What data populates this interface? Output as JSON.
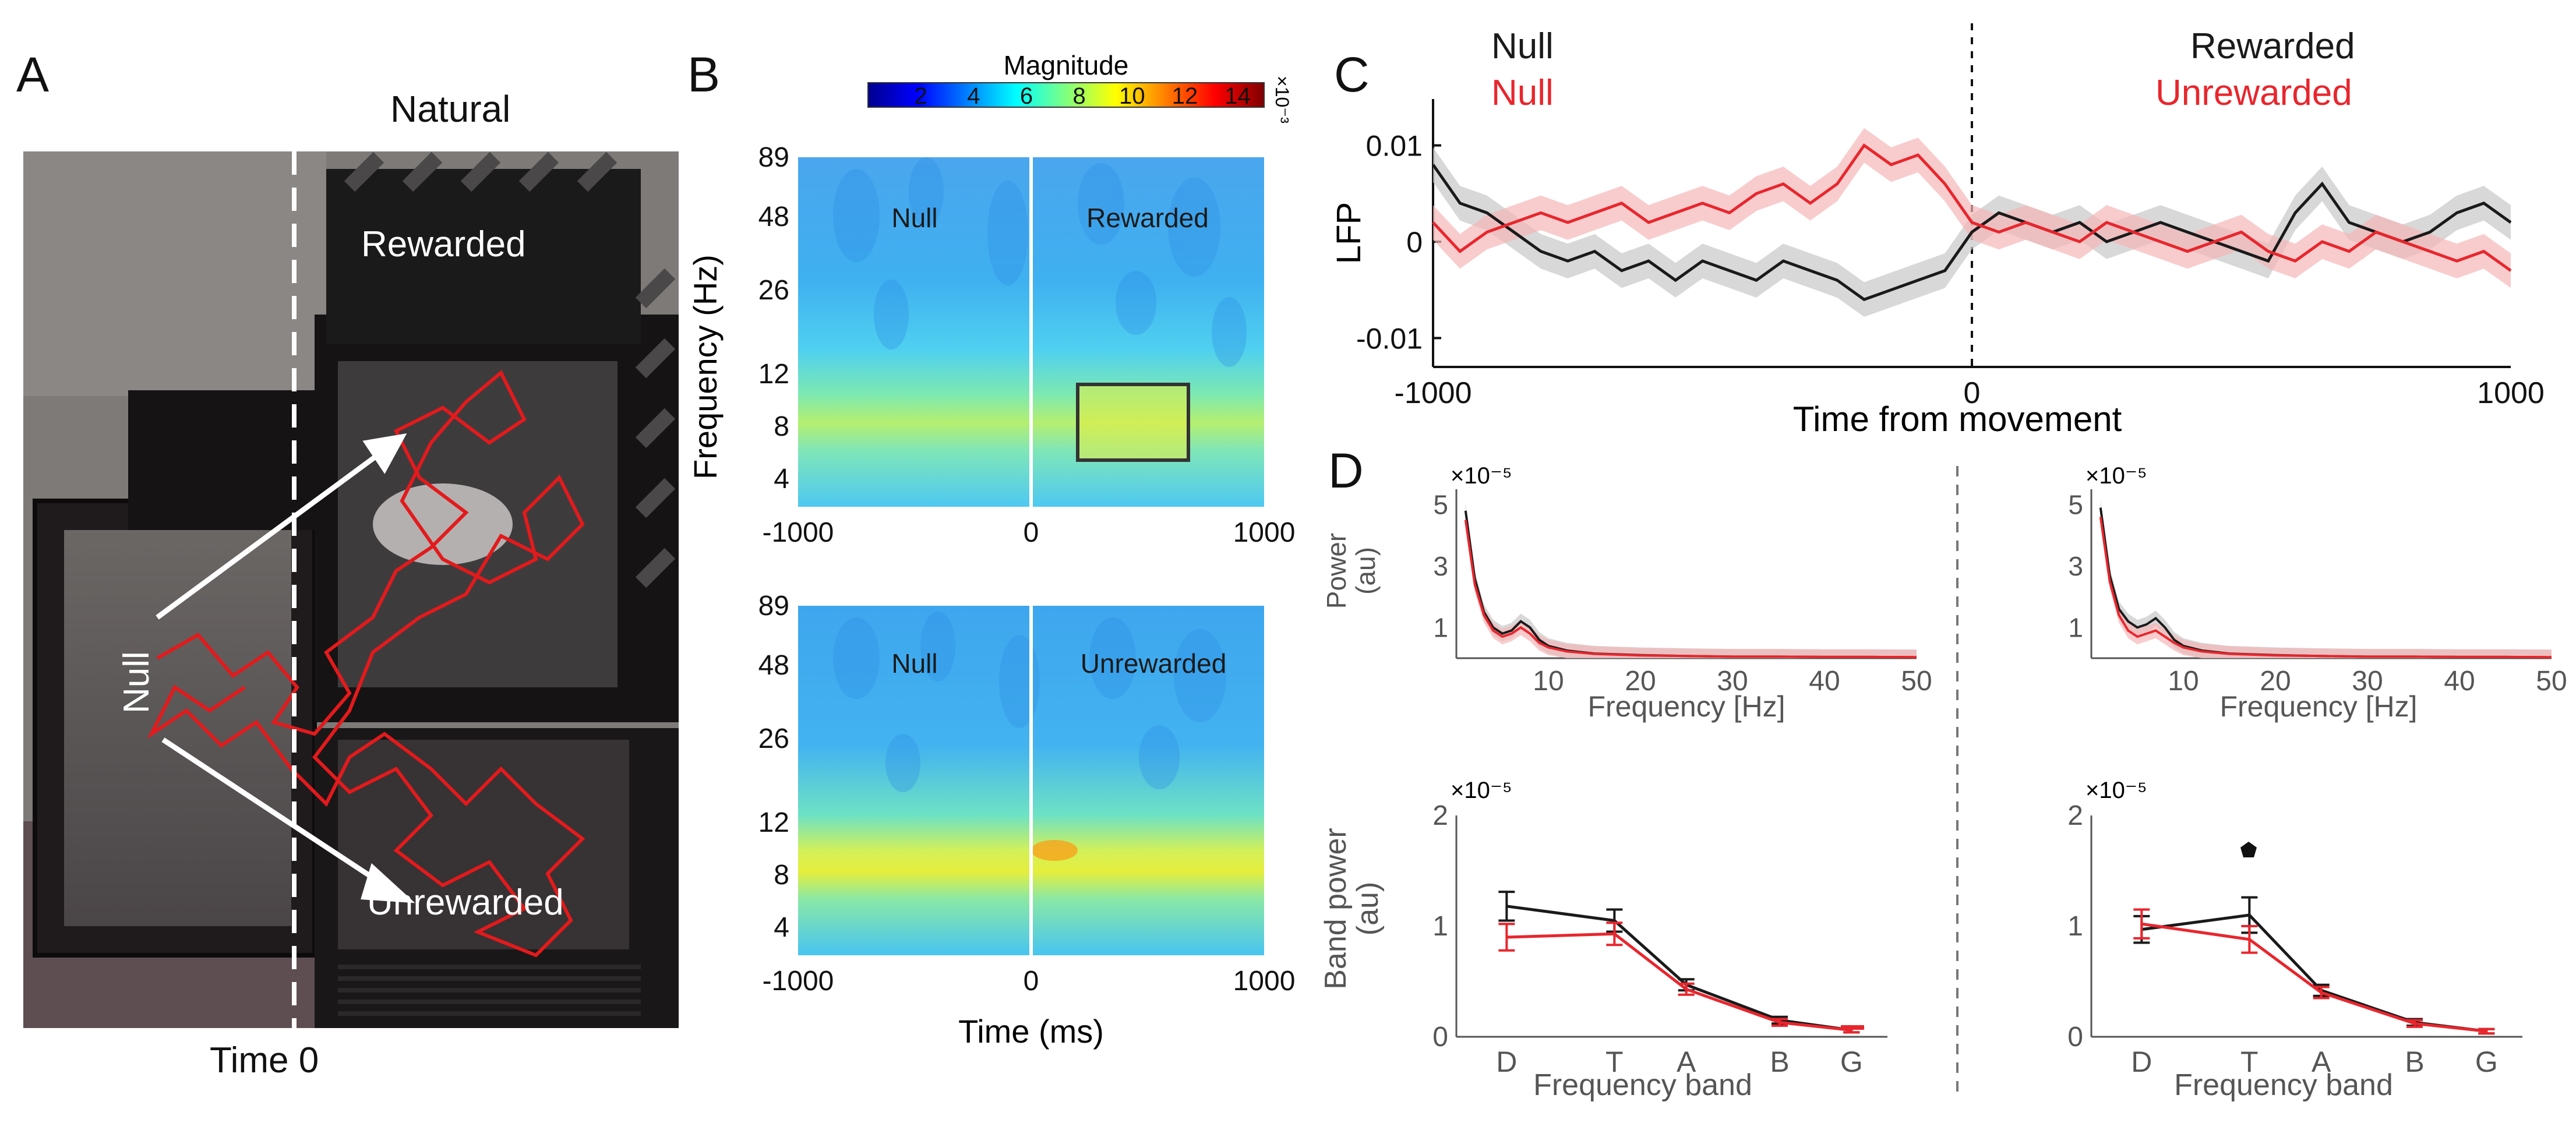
{
  "panels": {
    "a": {
      "label": "A",
      "title": "Natural",
      "arena_labels": {
        "rewarded": "Rewarded",
        "null": "Null",
        "unrewarded": "Unrewarded"
      },
      "caption": "Time 0"
    },
    "b": {
      "label": "B",
      "colorbar": {
        "label": "Magnitude",
        "ticks": [
          "2",
          "4",
          "6",
          "8",
          "10",
          "12",
          "14"
        ],
        "scale": "×10⁻³"
      },
      "ylabel": "Frequency (Hz)",
      "xlabel": "Time (ms)",
      "yticks": [
        "89",
        "48",
        "26",
        "12",
        "8",
        "4"
      ],
      "xticks": [
        "-1000",
        "0",
        "1000"
      ],
      "top": {
        "left_label": "Null",
        "right_label": "Rewarded"
      },
      "bottom": {
        "left_label": "Null",
        "right_label": "Unrewarded"
      }
    },
    "c": {
      "label": "C",
      "legend_left": {
        "black": "Null",
        "red": "Null"
      },
      "legend_right": {
        "black": "Rewarded",
        "red": "Unrewarded"
      },
      "ylabel": "LFP",
      "xlabel": "Time from movement",
      "yticks": [
        "0.01",
        "0",
        "-0.01"
      ],
      "xticks": [
        "-1000",
        "0",
        "1000"
      ]
    },
    "d": {
      "label": "D",
      "power_ylabel_line1": "Power",
      "power_ylabel_line2": "(au)",
      "power_xlabel": "Frequency [Hz]",
      "power_scale": "×10⁻⁵",
      "power_yticks": [
        "5",
        "3",
        "1"
      ],
      "power_xticks": [
        "10",
        "20",
        "30",
        "40",
        "50"
      ],
      "band_ylabel_line1": "Band power",
      "band_ylabel_line2": "(au)",
      "band_xlabel": "Frequency band",
      "band_scale": "×10⁻⁵",
      "band_yticks": [
        "2",
        "1",
        "0"
      ],
      "band_xticks": [
        "D",
        "T",
        "A",
        "B",
        "G"
      ]
    }
  },
  "colors": {
    "null": "#1a1a1a",
    "test": "#e8262d",
    "null_shade": "#c8c8c8",
    "test_shade": "#f5b6b8"
  },
  "chart_data": [
    {
      "type": "heatmap",
      "panel": "B-top",
      "x_range": [
        -1000,
        1000
      ],
      "y_ticks": [
        89,
        48,
        26,
        12,
        8,
        4
      ],
      "color_range": [
        0,
        0.015
      ],
      "highlight": {
        "x": [
          150,
          550
        ],
        "y_hz": [
          5,
          8
        ]
      }
    },
    {
      "type": "heatmap",
      "panel": "B-bottom",
      "x_range": [
        -1000,
        1000
      ],
      "y_ticks": [
        89,
        48,
        26,
        12,
        8,
        4
      ],
      "color_range": [
        0,
        0.015
      ]
    },
    {
      "type": "line",
      "panel": "C",
      "xlim": [
        -1000,
        1000
      ],
      "ylim": [
        -0.013,
        0.013
      ],
      "x": [
        -1000,
        -950,
        -900,
        -850,
        -800,
        -750,
        -700,
        -650,
        -600,
        -550,
        -500,
        -450,
        -400,
        -350,
        -300,
        -250,
        -200,
        -150,
        -100,
        -50,
        0,
        50,
        100,
        150,
        200,
        250,
        300,
        350,
        400,
        450,
        500,
        550,
        600,
        650,
        700,
        750,
        800,
        850,
        900,
        950,
        1000
      ],
      "series": [
        {
          "color_key": "null",
          "values": [
            0.008,
            0.004,
            0.003,
            0.001,
            -0.001,
            -0.002,
            -0.001,
            -0.003,
            -0.002,
            -0.004,
            -0.002,
            -0.003,
            -0.004,
            -0.002,
            -0.003,
            -0.004,
            -0.006,
            -0.005,
            -0.004,
            -0.003,
            0.001,
            0.003,
            0.002,
            0.001,
            0.002,
            0.0,
            0.001,
            0.002,
            0.001,
            0.0,
            -0.001,
            -0.002,
            0.003,
            0.006,
            0.002,
            0.001,
            0.0,
            0.001,
            0.003,
            0.004,
            0.002
          ]
        },
        {
          "color_key": "test",
          "values": [
            0.002,
            -0.001,
            0.001,
            0.002,
            0.003,
            0.002,
            0.003,
            0.004,
            0.002,
            0.003,
            0.004,
            0.003,
            0.005,
            0.006,
            0.004,
            0.006,
            0.01,
            0.008,
            0.009,
            0.006,
            0.002,
            0.001,
            0.002,
            0.001,
            0.0,
            0.002,
            0.001,
            0.0,
            -0.001,
            0.0,
            0.001,
            -0.001,
            -0.002,
            0.0,
            -0.001,
            0.001,
            0.0,
            -0.001,
            -0.002,
            -0.001,
            -0.003
          ]
        }
      ]
    },
    {
      "type": "line",
      "panel": "D-power-left",
      "xlim": [
        0,
        50
      ],
      "ylim": [
        0,
        5.5
      ],
      "x": [
        1,
        2,
        3,
        4,
        5,
        6,
        7,
        8,
        9,
        10,
        12,
        15,
        20,
        25,
        30,
        35,
        40,
        45,
        50
      ],
      "series": [
        {
          "color_key": "null",
          "values": [
            4.8,
            2.6,
            1.5,
            1.0,
            0.8,
            0.9,
            1.2,
            1.0,
            0.6,
            0.4,
            0.25,
            0.15,
            0.1,
            0.07,
            0.05,
            0.05,
            0.04,
            0.04,
            0.03
          ]
        },
        {
          "color_key": "test",
          "values": [
            4.5,
            2.4,
            1.4,
            0.9,
            0.7,
            0.8,
            1.0,
            0.8,
            0.5,
            0.35,
            0.22,
            0.14,
            0.09,
            0.07,
            0.05,
            0.05,
            0.04,
            0.04,
            0.03
          ]
        }
      ]
    },
    {
      "type": "line",
      "panel": "D-power-right",
      "xlim": [
        0,
        50
      ],
      "ylim": [
        0,
        5.5
      ],
      "x": [
        1,
        2,
        3,
        4,
        5,
        6,
        7,
        8,
        9,
        10,
        12,
        15,
        20,
        25,
        30,
        35,
        40,
        45,
        50
      ],
      "series": [
        {
          "color_key": "null",
          "values": [
            4.9,
            2.7,
            1.6,
            1.2,
            1.0,
            1.1,
            1.3,
            1.0,
            0.6,
            0.4,
            0.25,
            0.15,
            0.1,
            0.07,
            0.05,
            0.05,
            0.04,
            0.04,
            0.03
          ]
        },
        {
          "color_key": "test",
          "values": [
            4.6,
            2.5,
            1.4,
            0.9,
            0.7,
            0.8,
            0.9,
            0.7,
            0.5,
            0.35,
            0.22,
            0.14,
            0.09,
            0.07,
            0.05,
            0.05,
            0.04,
            0.04,
            0.03
          ]
        }
      ]
    },
    {
      "type": "line",
      "panel": "D-band-left",
      "categories": [
        "D",
        "T",
        "A",
        "B",
        "G"
      ],
      "x_positions": [
        1,
        2.5,
        3.5,
        4.8,
        5.8
      ],
      "ylim": [
        0,
        2
      ],
      "series": [
        {
          "color_key": "null",
          "values": [
            1.18,
            1.05,
            0.47,
            0.15,
            0.06
          ],
          "errors": [
            0.13,
            0.1,
            0.05,
            0.03,
            0.02
          ]
        },
        {
          "color_key": "test",
          "values": [
            0.9,
            0.93,
            0.43,
            0.13,
            0.06
          ],
          "errors": [
            0.12,
            0.1,
            0.05,
            0.03,
            0.02
          ]
        }
      ]
    },
    {
      "type": "line",
      "panel": "D-band-right",
      "categories": [
        "D",
        "T",
        "A",
        "B",
        "G"
      ],
      "x_positions": [
        1,
        2.5,
        3.5,
        4.8,
        5.8
      ],
      "ylim": [
        0,
        2
      ],
      "series": [
        {
          "color_key": "null",
          "values": [
            0.97,
            1.1,
            0.42,
            0.13,
            0.05
          ],
          "errors": [
            0.12,
            0.16,
            0.05,
            0.03,
            0.02
          ]
        },
        {
          "color_key": "test",
          "values": [
            1.02,
            0.88,
            0.4,
            0.12,
            0.05
          ],
          "errors": [
            0.13,
            0.12,
            0.05,
            0.03,
            0.02
          ]
        }
      ]
    }
  ]
}
